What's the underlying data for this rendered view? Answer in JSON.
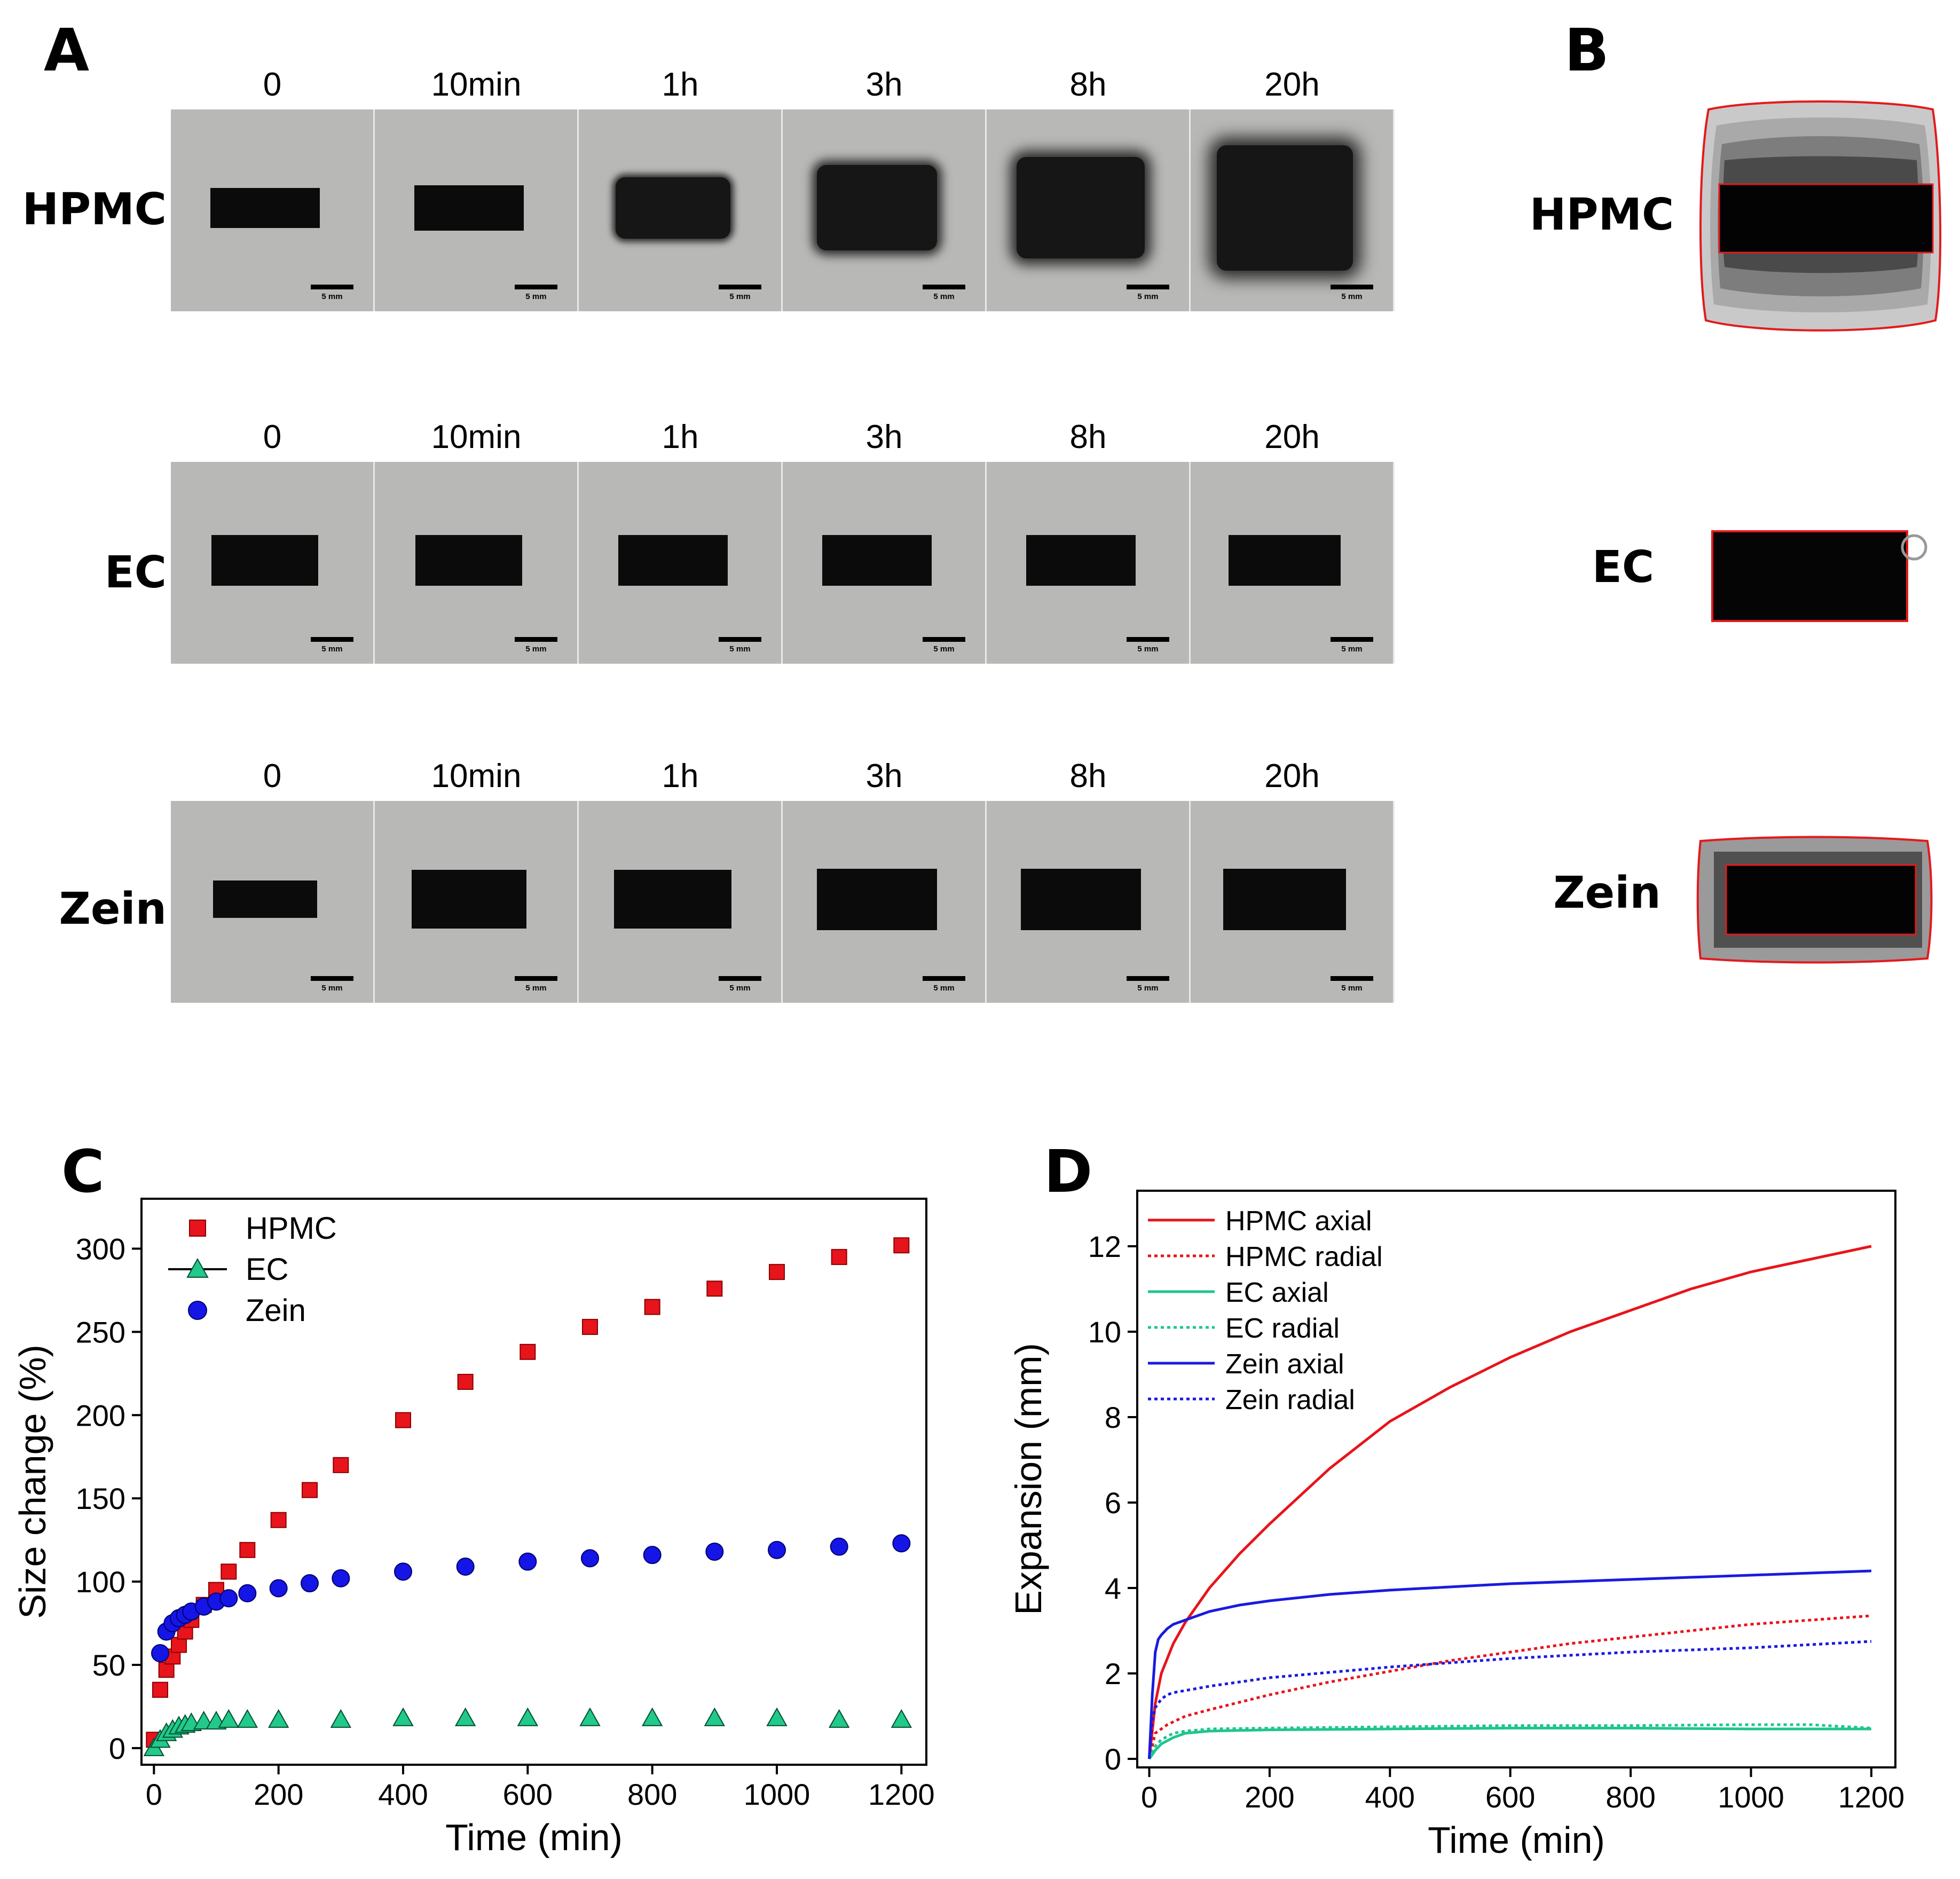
{
  "panels": {
    "a": "A",
    "b": "B",
    "c": "C",
    "d": "D"
  },
  "panel_a": {
    "time_points": [
      "0",
      "10min",
      "1h",
      "3h",
      "8h",
      "20h"
    ],
    "rows": [
      {
        "label": "HPMC",
        "scale_bar": "5 mm"
      },
      {
        "label": "EC",
        "scale_bar": "5 mm"
      },
      {
        "label": "Zein",
        "scale_bar": "5 mm"
      }
    ]
  },
  "panel_b": {
    "labels": [
      "HPMC",
      "EC",
      "Zein"
    ],
    "outline_color": "#e31a1c"
  },
  "chart_data": [
    {
      "id": "C",
      "type": "scatter",
      "xlabel": "Time (min)",
      "ylabel": "Size change (%)",
      "xlim": [
        -20,
        1240
      ],
      "ylim": [
        -10,
        330
      ],
      "xticks": [
        0,
        200,
        400,
        600,
        800,
        1000,
        1200
      ],
      "yticks": [
        0,
        50,
        100,
        150,
        200,
        250,
        300
      ],
      "legend_position": "top-left",
      "series": [
        {
          "name": "HPMC",
          "marker": "square",
          "color": "#e8141b",
          "x": [
            0,
            10,
            20,
            30,
            40,
            50,
            60,
            80,
            100,
            120,
            150,
            200,
            250,
            300,
            400,
            500,
            600,
            700,
            800,
            900,
            1000,
            1100,
            1200
          ],
          "y": [
            5,
            35,
            47,
            55,
            62,
            70,
            77,
            86,
            95,
            106,
            119,
            137,
            155,
            170,
            197,
            220,
            238,
            253,
            265,
            276,
            286,
            295,
            302
          ]
        },
        {
          "name": "EC",
          "marker": "triangle",
          "color": "#22c98a",
          "x": [
            0,
            10,
            20,
            30,
            40,
            50,
            60,
            80,
            100,
            120,
            150,
            200,
            300,
            400,
            500,
            600,
            700,
            800,
            900,
            1000,
            1100,
            1200
          ],
          "y": [
            0,
            5,
            9,
            11,
            13,
            14,
            15,
            16,
            16,
            17,
            17,
            17,
            17,
            18,
            18,
            18,
            18,
            18,
            18,
            18,
            17,
            17
          ]
        },
        {
          "name": "Zein",
          "marker": "circle",
          "color": "#1515e6",
          "x": [
            10,
            20,
            30,
            40,
            50,
            60,
            80,
            100,
            120,
            150,
            200,
            250,
            300,
            400,
            500,
            600,
            700,
            800,
            900,
            1000,
            1100,
            1200
          ],
          "y": [
            57,
            70,
            75,
            78,
            80,
            82,
            85,
            88,
            90,
            93,
            96,
            99,
            102,
            106,
            109,
            112,
            114,
            116,
            118,
            119,
            121,
            123
          ]
        }
      ]
    },
    {
      "id": "D",
      "type": "line",
      "xlabel": "Time (min)",
      "ylabel": "Expansion (mm)",
      "xlim": [
        -20,
        1240
      ],
      "ylim": [
        -0.2,
        13.3
      ],
      "xticks": [
        0,
        200,
        400,
        600,
        800,
        1000,
        1200
      ],
      "yticks": [
        0,
        2,
        4,
        6,
        8,
        10,
        12
      ],
      "legend_position": "top-left",
      "series": [
        {
          "name": "HPMC axial",
          "color": "#e8141b",
          "style": "solid",
          "x": [
            0,
            10,
            20,
            40,
            60,
            100,
            150,
            200,
            300,
            400,
            500,
            600,
            700,
            800,
            900,
            1000,
            1100,
            1200
          ],
          "y": [
            0,
            1.3,
            2.0,
            2.7,
            3.2,
            4.0,
            4.8,
            5.5,
            6.8,
            7.9,
            8.7,
            9.4,
            10.0,
            10.5,
            11.0,
            11.4,
            11.7,
            12.0
          ]
        },
        {
          "name": "HPMC radial",
          "color": "#e8141b",
          "style": "dotted",
          "x": [
            0,
            10,
            30,
            60,
            100,
            200,
            300,
            400,
            500,
            600,
            700,
            800,
            900,
            1000,
            1100,
            1200
          ],
          "y": [
            0,
            0.6,
            0.8,
            1.0,
            1.15,
            1.5,
            1.8,
            2.05,
            2.3,
            2.5,
            2.7,
            2.85,
            3.0,
            3.15,
            3.25,
            3.35
          ]
        },
        {
          "name": "EC axial",
          "color": "#1fc58f",
          "style": "solid",
          "x": [
            0,
            10,
            20,
            40,
            60,
            100,
            200,
            400,
            600,
            800,
            1000,
            1200
          ],
          "y": [
            0,
            0.2,
            0.35,
            0.5,
            0.6,
            0.65,
            0.68,
            0.7,
            0.72,
            0.72,
            0.7,
            0.7
          ]
        },
        {
          "name": "EC radial",
          "color": "#1fc58f",
          "style": "dotted",
          "x": [
            0,
            10,
            20,
            40,
            60,
            100,
            200,
            400,
            600,
            800,
            1000,
            1100,
            1200
          ],
          "y": [
            0,
            0.3,
            0.45,
            0.6,
            0.65,
            0.7,
            0.72,
            0.75,
            0.78,
            0.78,
            0.8,
            0.8,
            0.72
          ]
        },
        {
          "name": "Zein axial",
          "color": "#1a1ae0",
          "style": "solid",
          "x": [
            0,
            5,
            10,
            15,
            20,
            30,
            40,
            60,
            100,
            150,
            200,
            300,
            400,
            600,
            800,
            1000,
            1200
          ],
          "y": [
            0,
            1.5,
            2.5,
            2.8,
            2.9,
            3.05,
            3.15,
            3.25,
            3.45,
            3.6,
            3.7,
            3.85,
            3.95,
            4.1,
            4.2,
            4.3,
            4.4
          ]
        },
        {
          "name": "Zein radial",
          "color": "#1a1ae0",
          "style": "dotted",
          "x": [
            0,
            5,
            10,
            20,
            30,
            40,
            60,
            100,
            200,
            400,
            600,
            800,
            1000,
            1200
          ],
          "y": [
            0,
            0.9,
            1.2,
            1.4,
            1.5,
            1.55,
            1.6,
            1.7,
            1.9,
            2.15,
            2.35,
            2.5,
            2.6,
            2.75
          ]
        }
      ]
    }
  ]
}
